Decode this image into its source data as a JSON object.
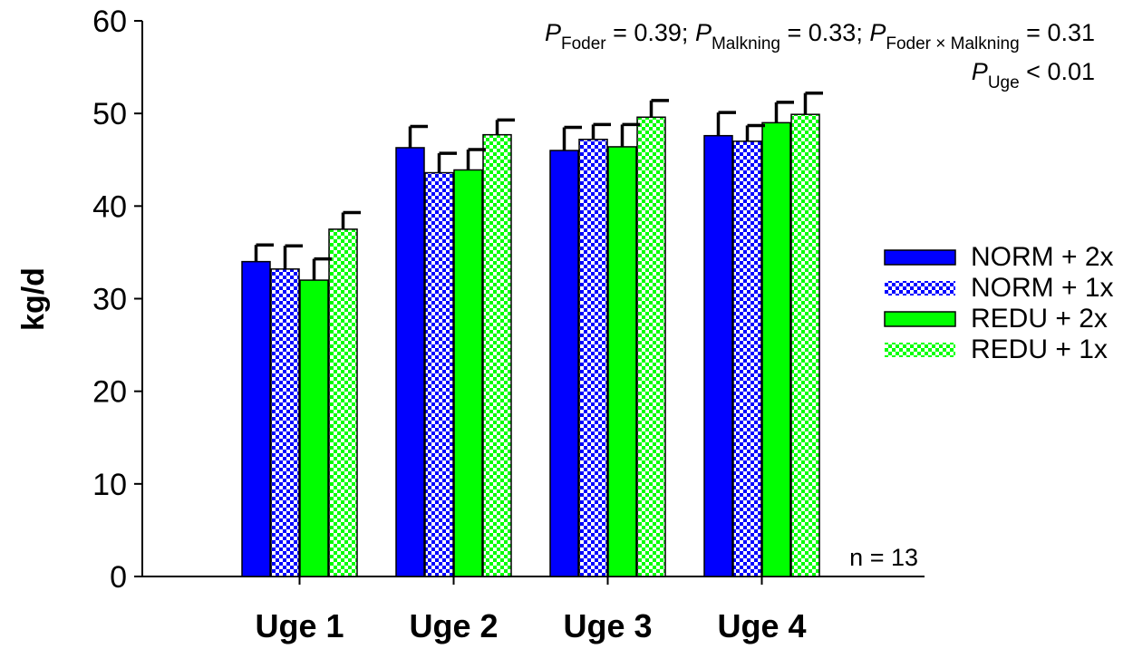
{
  "chart_data": {
    "type": "bar",
    "ylabel": "kg/d",
    "xlabel": "",
    "ylim": [
      0,
      60
    ],
    "yticks": [
      0,
      10,
      20,
      30,
      40,
      50,
      60
    ],
    "categories": [
      "Uge 1",
      "Uge 2",
      "Uge 3",
      "Uge 4"
    ],
    "series": [
      {
        "name": "NORM + 2x",
        "values": [
          34.0,
          46.3,
          46.0,
          47.6
        ],
        "errors": [
          1.8,
          2.3,
          2.5,
          2.5
        ],
        "color": "#0000ff",
        "pattern": "solid"
      },
      {
        "name": "NORM + 1x",
        "values": [
          33.2,
          43.6,
          47.2,
          47.0
        ],
        "errors": [
          2.5,
          2.1,
          1.6,
          1.7
        ],
        "color": "#0000ff",
        "pattern": "checker"
      },
      {
        "name": "REDU + 2x",
        "values": [
          32.0,
          43.9,
          46.4,
          49.0
        ],
        "errors": [
          2.3,
          2.2,
          2.4,
          2.2
        ],
        "color": "#00ff00",
        "pattern": "solid"
      },
      {
        "name": "REDU + 1x",
        "values": [
          37.5,
          47.7,
          49.6,
          49.9
        ],
        "errors": [
          1.8,
          1.6,
          1.8,
          2.3
        ],
        "color": "#00ff00",
        "pattern": "checker"
      }
    ],
    "legend_position": "right",
    "grid": false,
    "annotations": {
      "p_line1": [
        {
          "italic": "P",
          "sub": "Foder",
          "text": " = 0.39; "
        },
        {
          "italic": "P",
          "sub": "Malkning",
          "text": " = 0.33; "
        },
        {
          "italic": "P",
          "sub": "Foder × Malkning",
          "text": " = 0.31"
        }
      ],
      "p_line2": [
        {
          "italic": "P",
          "sub": "Uge",
          "text": " < 0.01"
        }
      ],
      "n_note": "n = 13"
    }
  }
}
